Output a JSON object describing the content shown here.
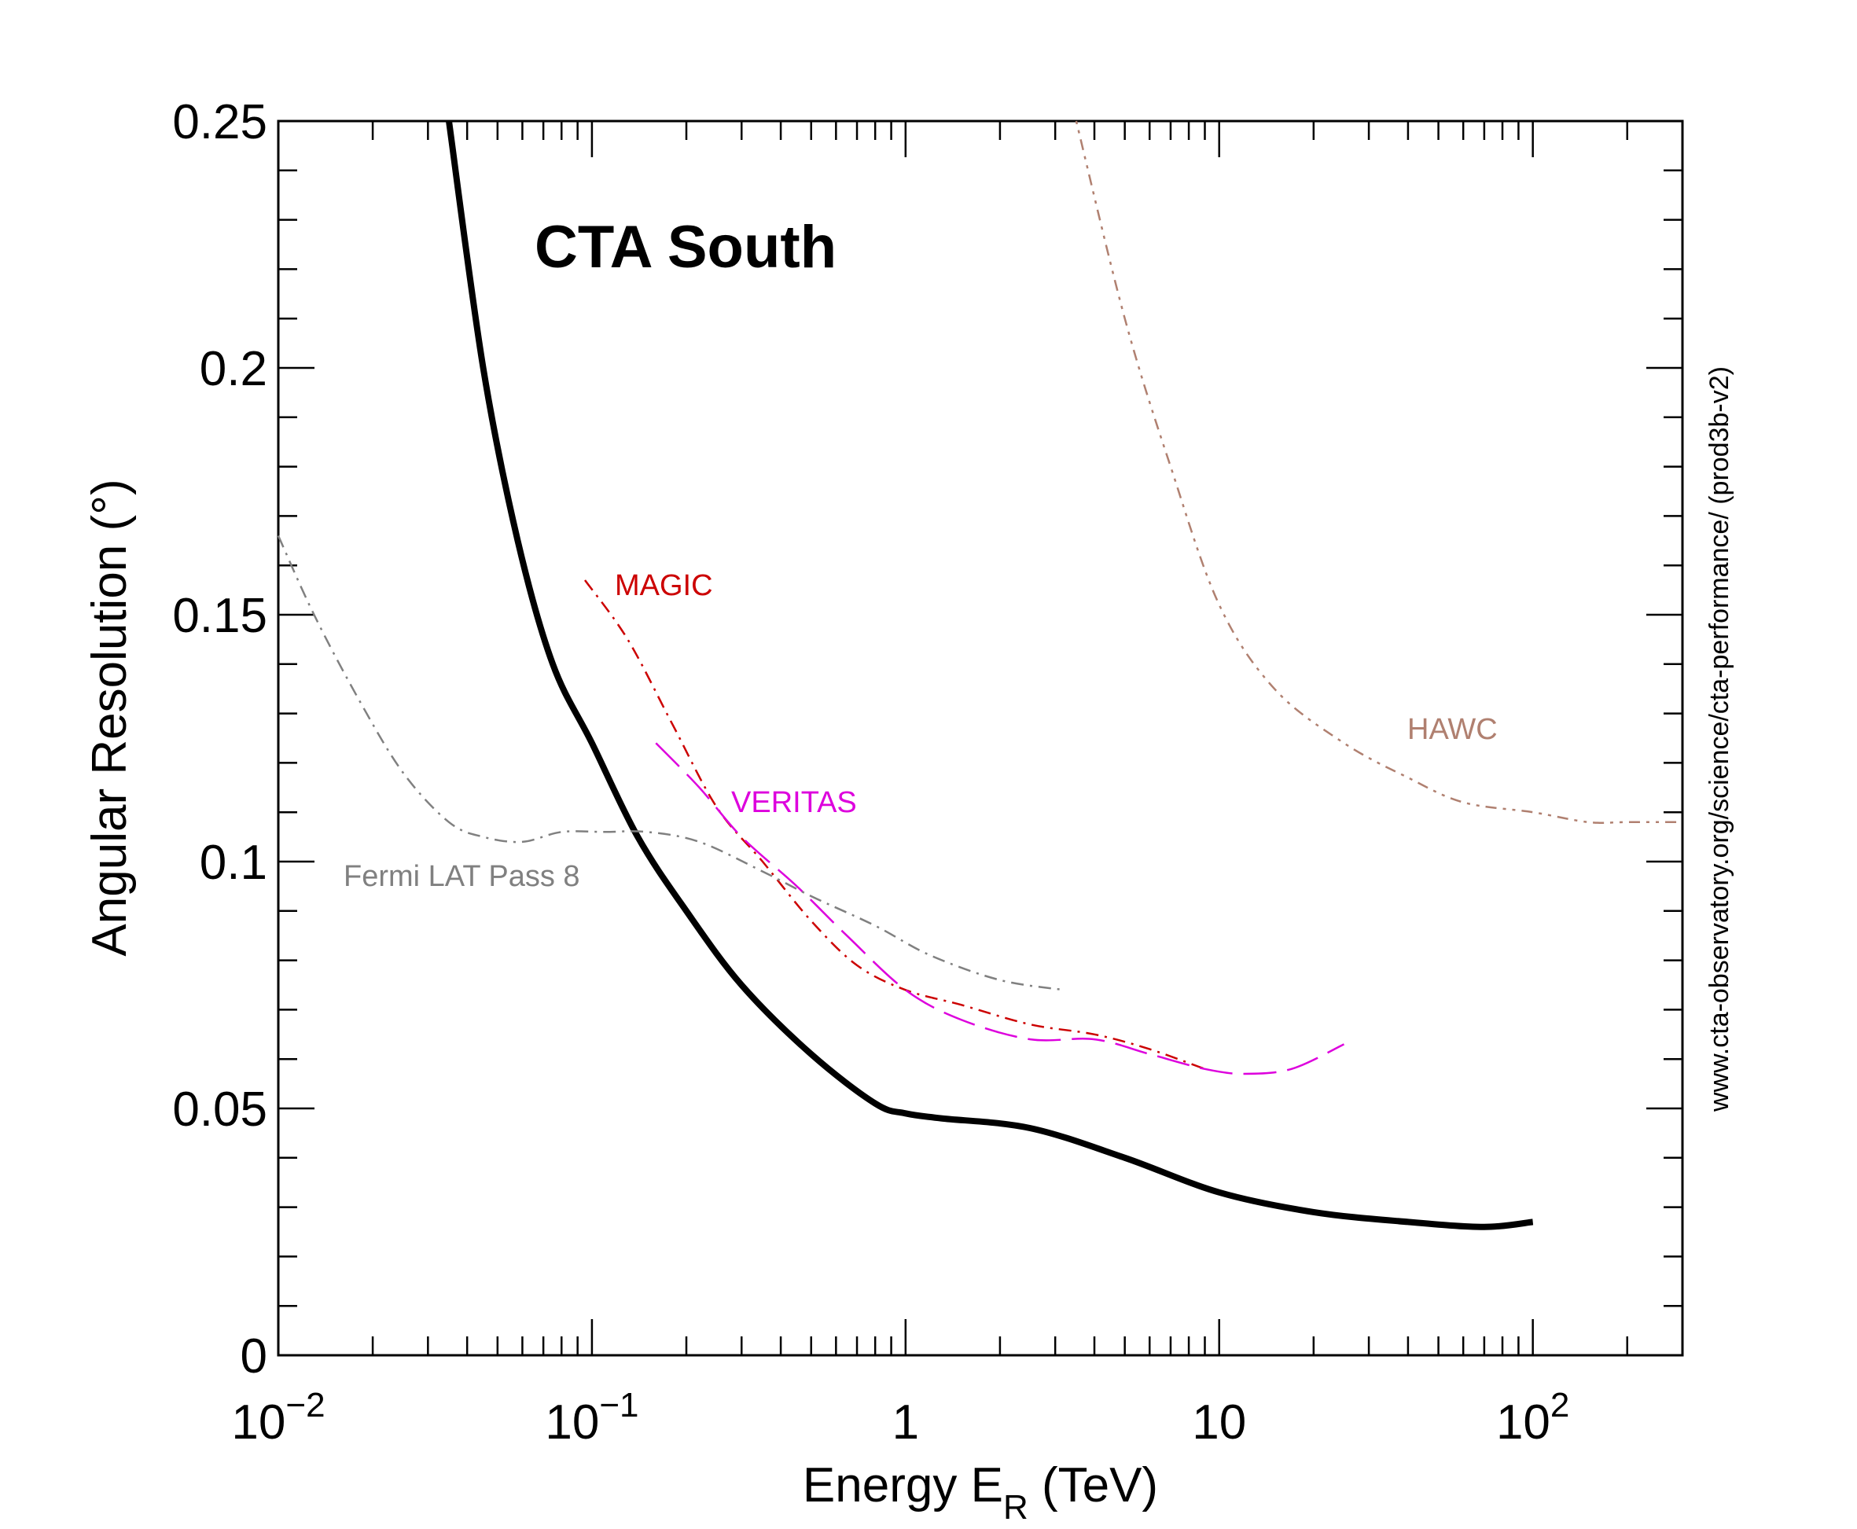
{
  "chart_data": {
    "type": "line",
    "title": "CTA South",
    "xlabel": "Energy E",
    "xlabel_sub": "R",
    "xlabel_unit": " (TeV)",
    "ylabel": "Angular Resolution (°)",
    "x_scale": "log",
    "xlim": [
      0.01,
      300
    ],
    "ylim": [
      0,
      0.25
    ],
    "grid": false,
    "x_ticks": [
      {
        "value": 0.01,
        "base": "10",
        "exp": "−2"
      },
      {
        "value": 0.1,
        "base": "10",
        "exp": "−1"
      },
      {
        "value": 1,
        "base": "1",
        "exp": ""
      },
      {
        "value": 10,
        "base": "10",
        "exp": ""
      },
      {
        "value": 100,
        "base": "10",
        "exp": "2"
      }
    ],
    "y_ticks": [
      {
        "value": 0,
        "label": "0"
      },
      {
        "value": 0.05,
        "label": "0.05"
      },
      {
        "value": 0.1,
        "label": "0.1"
      },
      {
        "value": 0.15,
        "label": "0.15"
      },
      {
        "value": 0.2,
        "label": "0.2"
      },
      {
        "value": 0.25,
        "label": "0.25"
      }
    ],
    "side_note": "www.cta-observatory.org/science/cta-performance/ (prod3b-v2)",
    "series": [
      {
        "key": "cta",
        "name": "",
        "color": "#000000",
        "dash": "solid",
        "points": [
          [
            0.035,
            0.25
          ],
          [
            0.045,
            0.2
          ],
          [
            0.058,
            0.165
          ],
          [
            0.075,
            0.14
          ],
          [
            0.1,
            0.124
          ],
          [
            0.14,
            0.105
          ],
          [
            0.2,
            0.09
          ],
          [
            0.3,
            0.075
          ],
          [
            0.5,
            0.061
          ],
          [
            0.8,
            0.051
          ],
          [
            1,
            0.049
          ],
          [
            1.3,
            0.048
          ],
          [
            2.5,
            0.046
          ],
          [
            5,
            0.04
          ],
          [
            10,
            0.033
          ],
          [
            20,
            0.029
          ],
          [
            40,
            0.027
          ],
          [
            70,
            0.026
          ],
          [
            100,
            0.027
          ]
        ]
      },
      {
        "key": "magic",
        "name": "MAGIC",
        "color": "#cc0000",
        "dash": "dashdot",
        "points": [
          [
            0.095,
            0.157
          ],
          [
            0.13,
            0.145
          ],
          [
            0.18,
            0.128
          ],
          [
            0.25,
            0.111
          ],
          [
            0.35,
            0.1
          ],
          [
            0.5,
            0.088
          ],
          [
            0.7,
            0.079
          ],
          [
            1,
            0.074
          ],
          [
            1.5,
            0.071
          ],
          [
            2.5,
            0.067
          ],
          [
            4,
            0.065
          ],
          [
            6,
            0.062
          ],
          [
            9,
            0.058
          ]
        ]
      },
      {
        "key": "veritas",
        "name": "VERITAS",
        "color": "#dd00dd",
        "dash": "longdash",
        "points": [
          [
            0.16,
            0.124
          ],
          [
            0.22,
            0.115
          ],
          [
            0.3,
            0.105
          ],
          [
            0.45,
            0.095
          ],
          [
            0.65,
            0.085
          ],
          [
            1,
            0.074
          ],
          [
            1.5,
            0.068
          ],
          [
            2.5,
            0.064
          ],
          [
            4,
            0.064
          ],
          [
            6,
            0.061
          ],
          [
            9,
            0.058
          ],
          [
            12,
            0.057
          ],
          [
            17,
            0.058
          ],
          [
            25,
            0.063
          ]
        ]
      },
      {
        "key": "fermi",
        "name": "Fermi LAT Pass 8",
        "color": "#808080",
        "dash": "dashdot",
        "points": [
          [
            0.01,
            0.166
          ],
          [
            0.013,
            0.15
          ],
          [
            0.018,
            0.133
          ],
          [
            0.025,
            0.118
          ],
          [
            0.035,
            0.108
          ],
          [
            0.045,
            0.105
          ],
          [
            0.06,
            0.104
          ],
          [
            0.08,
            0.106
          ],
          [
            0.11,
            0.106
          ],
          [
            0.15,
            0.106
          ],
          [
            0.22,
            0.104
          ],
          [
            0.35,
            0.098
          ],
          [
            0.5,
            0.093
          ],
          [
            0.8,
            0.087
          ],
          [
            1.2,
            0.081
          ],
          [
            2,
            0.076
          ],
          [
            3.2,
            0.074
          ]
        ]
      },
      {
        "key": "hawc",
        "name": "HAWC",
        "color": "#b08070",
        "dash": "dotted",
        "points": [
          [
            3.5,
            0.25
          ],
          [
            5,
            0.21
          ],
          [
            7,
            0.18
          ],
          [
            10,
            0.152
          ],
          [
            15,
            0.135
          ],
          [
            25,
            0.124
          ],
          [
            40,
            0.117
          ],
          [
            60,
            0.112
          ],
          [
            100,
            0.11
          ],
          [
            150,
            0.108
          ],
          [
            200,
            0.108
          ],
          [
            300,
            0.108
          ]
        ]
      }
    ]
  }
}
